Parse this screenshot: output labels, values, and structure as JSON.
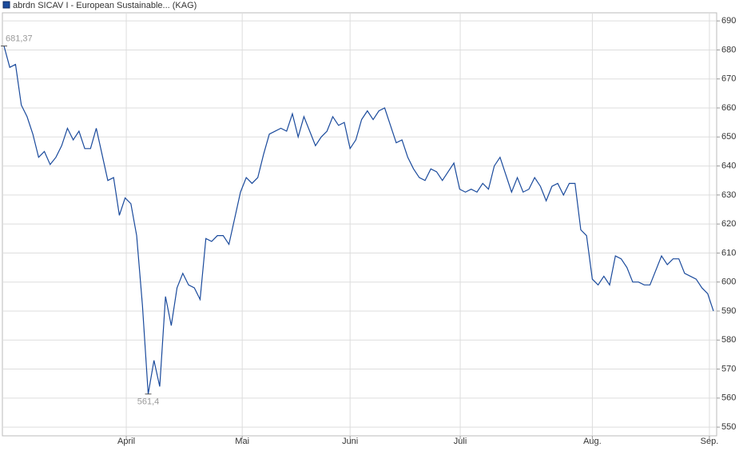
{
  "chart_data": {
    "type": "line",
    "series": [
      {
        "name": "abrdn SICAV I - European Sustainable... (KAG)",
        "color": "#1a4a9c",
        "values": [
          681.37,
          674,
          675,
          661,
          657,
          651,
          643,
          645,
          640.5,
          643,
          647,
          653,
          649,
          652,
          646,
          646,
          653,
          644,
          635,
          636,
          623,
          629,
          627,
          616,
          592,
          561.4,
          573,
          564,
          595,
          585,
          598,
          603,
          599,
          598,
          594,
          615,
          614,
          616,
          616,
          613,
          622,
          631,
          636,
          634,
          636,
          644,
          651,
          652,
          653,
          652,
          658,
          650,
          657,
          652,
          647,
          650,
          652,
          657,
          654,
          655,
          646,
          649,
          656,
          659,
          656,
          659,
          660,
          654,
          648,
          649,
          643,
          639,
          636,
          635,
          639,
          638,
          635,
          638,
          641,
          632,
          631,
          632,
          631,
          634,
          632,
          640,
          643,
          637,
          631,
          636,
          631,
          632,
          636,
          633,
          628,
          633,
          634,
          630,
          634,
          634,
          618,
          616,
          601,
          599,
          602,
          599,
          609,
          608,
          605,
          600,
          600,
          599,
          599,
          604,
          609,
          606,
          608,
          608,
          603,
          602,
          601,
          598,
          596,
          590
        ],
        "value_labels": [
          "681,37",
          null,
          null,
          null,
          null,
          null,
          null,
          null,
          null,
          null,
          null,
          null,
          null,
          null,
          null,
          null,
          null,
          null,
          null,
          null,
          null,
          null,
          null,
          null,
          null,
          "561,4",
          null,
          null,
          null,
          null,
          null,
          null,
          null,
          null,
          null,
          null,
          null,
          null,
          null,
          null,
          null,
          null,
          null,
          null,
          null,
          null,
          null,
          null,
          null,
          null,
          null,
          null,
          null,
          null,
          null,
          null,
          null,
          null,
          null,
          null,
          null,
          null,
          null,
          null,
          null,
          null,
          null,
          null,
          null,
          null,
          null,
          null,
          null,
          null,
          null,
          null,
          null,
          null,
          null,
          null,
          null,
          null,
          null,
          null,
          null,
          null,
          null,
          null,
          null,
          null,
          null,
          null,
          null,
          null,
          null,
          null,
          null,
          null,
          null,
          null,
          null,
          null,
          null,
          null,
          null,
          null,
          null,
          null,
          null,
          null,
          null,
          null,
          null,
          null,
          null,
          null,
          null,
          null,
          null,
          null,
          null,
          null,
          null,
          null
        ]
      }
    ],
    "xlim": [
      0,
      123
    ],
    "xticks": [
      {
        "value": 21.2,
        "label": "April"
      },
      {
        "value": 41.3,
        "label": "Mai"
      },
      {
        "value": 60,
        "label": "Juni"
      },
      {
        "value": 79.1,
        "label": "Juli"
      },
      {
        "value": 102,
        "label": "Aug."
      },
      {
        "value": 122.3,
        "label": "Sep."
      }
    ],
    "ylim": [
      547,
      692.8
    ],
    "yticks": [
      550,
      560,
      570,
      580,
      590,
      600,
      610,
      620,
      630,
      640,
      650,
      660,
      670,
      680,
      690
    ],
    "grid": true
  }
}
